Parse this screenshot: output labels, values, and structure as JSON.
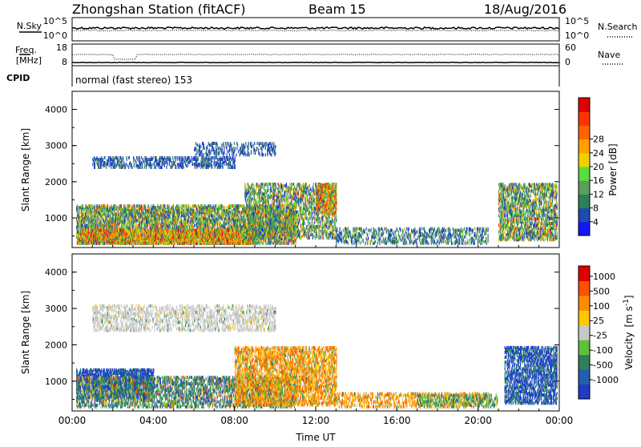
{
  "header": {
    "title": "Zhongshan Station (fitACF)",
    "beam": "Beam 15",
    "date": "18/Aug/2016"
  },
  "noise_panel": {
    "left_label": "N.Sky",
    "right_label": "N.Search",
    "left_ticks": [
      "10^5",
      "10^0"
    ],
    "right_ticks": [
      "10^5",
      "10^0"
    ]
  },
  "freq_panel": {
    "left_label_1": "Freq.",
    "left_label_2": "[MHz]",
    "right_label": "Nave",
    "left_ticks": [
      "18",
      "8"
    ],
    "right_ticks": [
      "60",
      "0"
    ]
  },
  "cpid": {
    "label": "CPID",
    "text": "normal (fast stereo) 153"
  },
  "chart_data": [
    {
      "type": "heatmap",
      "name": "power",
      "ylabel": "Slant Range [km]",
      "xlabel": "",
      "ylim": [
        180,
        4500
      ],
      "yticks": [
        "1000",
        "2000",
        "3000",
        "4000"
      ],
      "colorbar": {
        "label": "Power [dB]",
        "ticks": [
          "4",
          "8",
          "12",
          "16",
          "20",
          "24",
          "28"
        ],
        "colors": [
          "#1414ff",
          "#1e4ab4",
          "#2e7f58",
          "#5c9e5c",
          "#5adc3c",
          "#f0d000",
          "#ffa000",
          "#ff6400",
          "#ff3300",
          "#e00000"
        ]
      }
    },
    {
      "type": "heatmap",
      "name": "velocity",
      "ylabel": "Slant Range [km]",
      "xlabel": "Time UT",
      "ylim": [
        180,
        4500
      ],
      "yticks": [
        "1000",
        "2000",
        "3000",
        "4000"
      ],
      "xticks": [
        "00:00",
        "04:00",
        "08:00",
        "12:00",
        "16:00",
        "20:00",
        "00:00"
      ],
      "colorbar": {
        "label_main": "Velocity",
        "label_units": "[m s",
        "label_exp": "-1",
        "label_close": "]",
        "ticks": [
          "1000",
          "500",
          "100",
          "25",
          "-25",
          "-100",
          "-500",
          "-1000"
        ],
        "colors": [
          "#1e3cc8",
          "#2060b0",
          "#2e7f58",
          "#5cc23c",
          "#c8c8c8",
          "#ffc800",
          "#ff8c00",
          "#ff5000",
          "#e00000"
        ]
      }
    }
  ]
}
